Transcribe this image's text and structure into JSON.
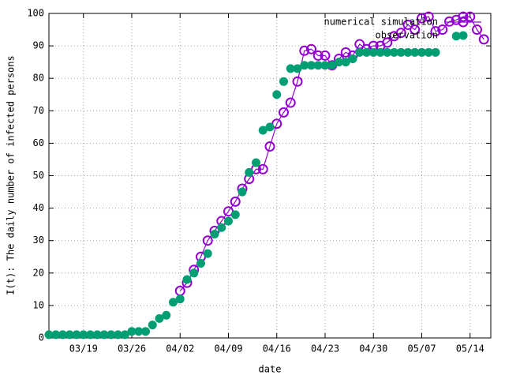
{
  "chart_data": {
    "type": "line",
    "xlabel": "date",
    "ylabel": "I(t): The daily number of infected persons",
    "xlim": [
      "03/14",
      "05/17"
    ],
    "xticks": [
      "03/19",
      "03/26",
      "04/02",
      "04/09",
      "04/16",
      "04/23",
      "04/30",
      "05/07",
      "05/14"
    ],
    "ylim": [
      0,
      100
    ],
    "yticks": [
      0,
      10,
      20,
      30,
      40,
      50,
      60,
      70,
      80,
      90,
      100
    ],
    "grid": true,
    "legend": "top-right",
    "series": [
      {
        "name": "numerical simulation",
        "color": "#9400d3",
        "style": "linespoints",
        "x": [
          "04/02",
          "04/03",
          "04/04",
          "04/05",
          "04/06",
          "04/07",
          "04/08",
          "04/09",
          "04/10",
          "04/11",
          "04/12",
          "04/13",
          "04/14",
          "04/15",
          "04/16",
          "04/17",
          "04/18",
          "04/19",
          "04/20",
          "04/21",
          "04/22",
          "04/23",
          "04/24",
          "04/25",
          "04/26",
          "04/27",
          "04/28",
          "04/29",
          "04/30",
          "05/01",
          "05/02",
          "05/03",
          "05/04",
          "05/05",
          "05/06",
          "05/07",
          "05/08",
          "05/09",
          "05/10",
          "05/11",
          "05/12",
          "05/13",
          "05/14",
          "05/15",
          "05/16"
        ],
        "values": [
          14.5,
          17,
          21,
          25,
          30,
          33,
          36,
          39,
          42,
          46,
          49,
          52,
          52,
          59,
          66,
          69.5,
          72.5,
          79,
          88.5,
          89,
          87,
          87,
          84,
          86,
          88,
          87,
          90.5,
          89,
          90,
          90,
          91,
          93,
          94,
          96.5,
          95,
          98.5,
          99,
          94.5,
          95,
          97.5,
          98,
          99,
          99,
          95,
          92
        ]
      },
      {
        "name": "observation",
        "color": "#009e73",
        "style": "points",
        "x": [
          "03/14",
          "03/15",
          "03/16",
          "03/17",
          "03/18",
          "03/19",
          "03/20",
          "03/21",
          "03/22",
          "03/23",
          "03/24",
          "03/25",
          "03/26",
          "03/27",
          "03/28",
          "03/29",
          "03/30",
          "03/31",
          "04/01",
          "04/02",
          "04/03",
          "04/04",
          "04/05",
          "04/06",
          "04/07",
          "04/08",
          "04/09",
          "04/10",
          "04/11",
          "04/12",
          "04/13",
          "04/14",
          "04/15",
          "04/16",
          "04/17",
          "04/18",
          "04/19",
          "04/20",
          "04/21",
          "04/22",
          "04/23",
          "04/24",
          "04/25",
          "04/26",
          "04/27",
          "04/28",
          "04/29",
          "04/30",
          "05/01",
          "05/02",
          "05/03",
          "05/04",
          "05/05",
          "05/06",
          "05/07",
          "05/08",
          "05/09",
          "05/12"
        ],
        "values": [
          1,
          1,
          1,
          1,
          1,
          1,
          1,
          1,
          1,
          1,
          1,
          1,
          2,
          2,
          2,
          4,
          6,
          7,
          11,
          12,
          18,
          20,
          23,
          26,
          32,
          34,
          36,
          38,
          45,
          51,
          54,
          64,
          65,
          75,
          79,
          83,
          83,
          84,
          84,
          84,
          84,
          84,
          85,
          85,
          86,
          88,
          88,
          88,
          88,
          88,
          88,
          88,
          88,
          88,
          88,
          88,
          88,
          93
        ]
      }
    ]
  }
}
